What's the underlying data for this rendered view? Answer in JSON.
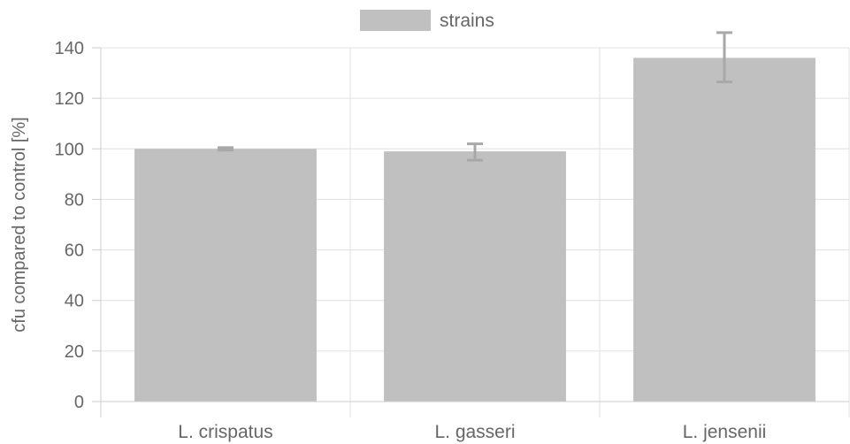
{
  "chart_data": {
    "type": "bar",
    "categories": [
      "L. crispatus",
      "L. gasseri",
      "L. jensenii"
    ],
    "series": [
      {
        "name": "strains",
        "values": [
          100,
          99,
          136
        ],
        "error_low": [
          99.5,
          95.5,
          126.5
        ],
        "error_high": [
          100.5,
          102,
          146
        ]
      }
    ],
    "ylabel": "cfu compared to control [%]",
    "xlabel": "",
    "ylim": [
      0,
      140
    ],
    "yticks": [
      0,
      20,
      40,
      60,
      80,
      100,
      120,
      140
    ],
    "grid": true,
    "legend_position": "top",
    "colors": {
      "bar": "#c0c0c0",
      "error": "#a8a8a8",
      "grid": "#e0e0e0",
      "axis": "#cccccc",
      "text": "#666666"
    }
  }
}
